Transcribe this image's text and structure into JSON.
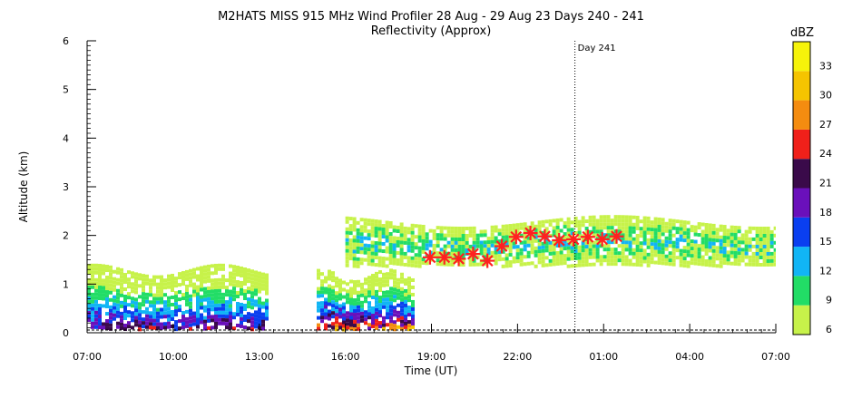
{
  "chart_data": {
    "type": "heatmap",
    "title": "M2HATS MISS 915 MHz Wind Profiler  28 Aug - 29 Aug 23 Days 240 - 241",
    "subtitle": "Reflectivity (Approx)",
    "xlabel": "Time (UT)",
    "ylabel": "Altitude (km)",
    "x_ticks": [
      "07:00",
      "10:00",
      "13:00",
      "16:00",
      "19:00",
      "22:00",
      "01:00",
      "04:00",
      "07:00"
    ],
    "x_range_hours": [
      0,
      24
    ],
    "y_ticks": [
      "0",
      "1",
      "2",
      "3",
      "4",
      "5",
      "6"
    ],
    "ylim": [
      0,
      6
    ],
    "day_marker": {
      "label": "Day 241",
      "x_hours": 17
    },
    "colorbar": {
      "unit": "dBZ",
      "tick_labels": [
        "6",
        "9",
        "12",
        "15",
        "18",
        "21",
        "24",
        "27",
        "30",
        "33"
      ],
      "colors": [
        "#c7f24a",
        "#22dd66",
        "#11b5f5",
        "#0a3ff0",
        "#6a10bb",
        "#3a0a4a",
        "#f0201a",
        "#f48c10",
        "#f5c400",
        "#f6f30a"
      ]
    },
    "markers": {
      "symbol": "asterisk",
      "color": "#ff2020",
      "points": [
        {
          "x": 11.95,
          "y": 1.55
        },
        {
          "x": 12.45,
          "y": 1.55
        },
        {
          "x": 12.95,
          "y": 1.52
        },
        {
          "x": 13.45,
          "y": 1.62
        },
        {
          "x": 13.95,
          "y": 1.48
        },
        {
          "x": 14.45,
          "y": 1.78
        },
        {
          "x": 14.95,
          "y": 1.97
        },
        {
          "x": 15.45,
          "y": 2.05
        },
        {
          "x": 15.95,
          "y": 1.98
        },
        {
          "x": 16.45,
          "y": 1.9
        },
        {
          "x": 16.95,
          "y": 1.92
        },
        {
          "x": 17.45,
          "y": 1.97
        },
        {
          "x": 17.95,
          "y": 1.92
        },
        {
          "x": 18.45,
          "y": 1.98
        }
      ]
    },
    "echo_regions": [
      {
        "name": "boundary-layer-left",
        "x_start": 0.0,
        "x_end": 6.3,
        "y_base": 0.1,
        "y_top": 1.3,
        "peak_dbz": 27
      },
      {
        "name": "convective-echo",
        "x_start": 8.0,
        "x_end": 11.3,
        "y_base": 0.1,
        "y_top": 1.2,
        "peak_dbz": 33
      },
      {
        "name": "elevated-layer",
        "x_start": 9.0,
        "x_end": 24.0,
        "y_base": 1.4,
        "y_top": 2.3,
        "peak_dbz": 15
      }
    ]
  }
}
